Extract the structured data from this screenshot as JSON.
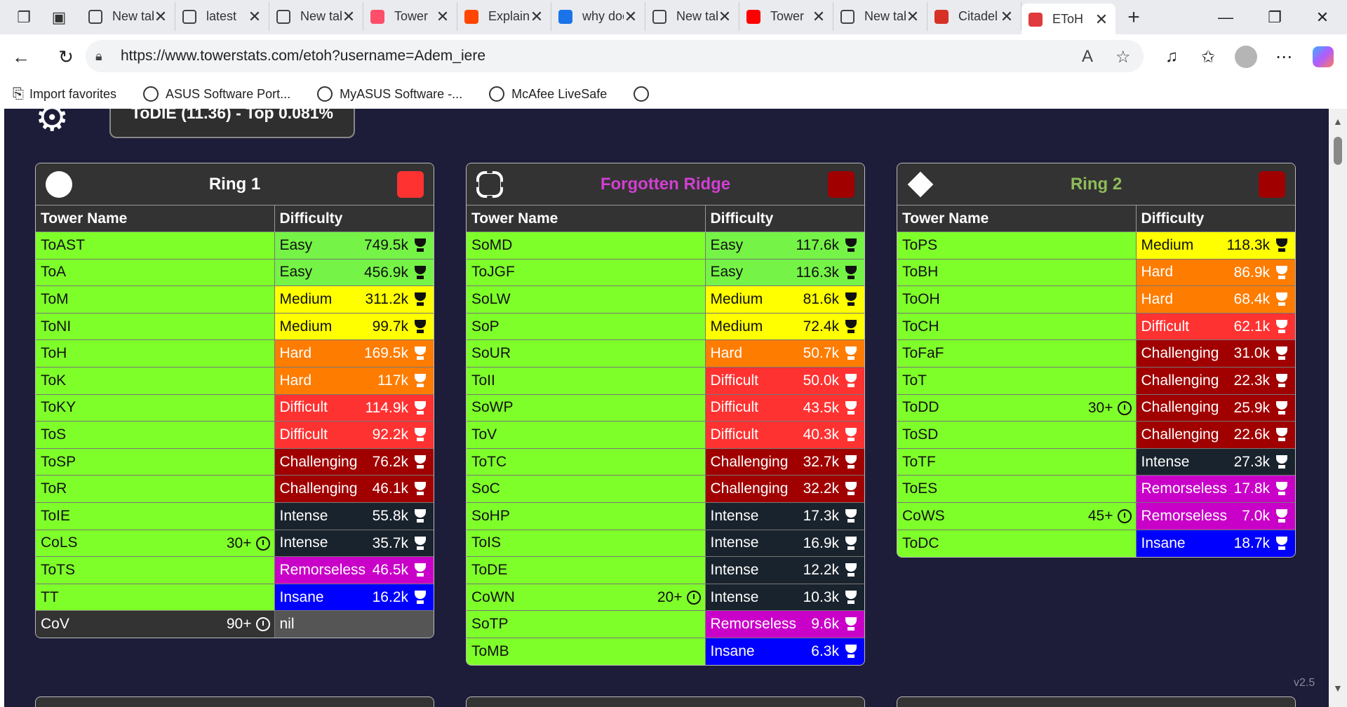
{
  "browser": {
    "tabs": [
      {
        "title": "New tab",
        "icon": "page-icon",
        "color": "#ffffff"
      },
      {
        "title": "latest",
        "icon": "globe-icon",
        "color": "#ffffff"
      },
      {
        "title": "New tab",
        "icon": "page-icon",
        "color": "#ffffff"
      },
      {
        "title": "Tower",
        "icon": "youtube-icon",
        "color": "#ff4e6a"
      },
      {
        "title": "Explain",
        "icon": "reddit-icon",
        "color": "#ff4500"
      },
      {
        "title": "why does",
        "icon": "search-icon",
        "color": "#1a73e8"
      },
      {
        "title": "New tab",
        "icon": "page-icon",
        "color": "#ffffff"
      },
      {
        "title": "Tower",
        "icon": "youtube-icon",
        "color": "#ff0000"
      },
      {
        "title": "New tab",
        "icon": "page-icon",
        "color": "#ffffff"
      },
      {
        "title": "Citadel",
        "icon": "fandom-icon",
        "color": "#d63027"
      },
      {
        "title": "EToH",
        "icon": "towerstats-icon",
        "color": "#e03a3e",
        "active": true
      }
    ],
    "url": "https://www.towerstats.com/etoh?username=Adem_iere",
    "favorites": [
      "Import favorites",
      "ASUS Software Port...",
      "MyASUS Software -...",
      "McAfee LiveSafe"
    ]
  },
  "header": {
    "rank_text": "ToDIE (11.36) - Top 0.081%"
  },
  "columns": {
    "tower": "Tower Name",
    "difficulty": "Difficulty"
  },
  "difficulty_colors": {
    "Easy": {
      "bg": "#75f347",
      "fg": "#111111"
    },
    "Medium": {
      "bg": "#ffff00",
      "fg": "#111111"
    },
    "Hard": {
      "bg": "#fe7c00",
      "fg": "#ffffff"
    },
    "Difficult": {
      "bg": "#ff3232",
      "fg": "#ffffff"
    },
    "Challenging": {
      "bg": "#a00000",
      "fg": "#ffffff"
    },
    "Intense": {
      "bg": "#19232d",
      "fg": "#ffffff"
    },
    "Remorseless": {
      "bg": "#c900c8",
      "fg": "#ffffff"
    },
    "Insane": {
      "bg": "#0000ff",
      "fg": "#ffffff"
    },
    "nil": {
      "bg": "#555555",
      "fg": "#ffffff"
    }
  },
  "areas": [
    {
      "name": "Ring 1",
      "name_color": "#ffffff",
      "icon": "circle-icon",
      "square_color": "#ff3232",
      "towers": [
        {
          "name": "ToAST",
          "difficulty": "Easy",
          "count": "749.5k",
          "trophy": "dark"
        },
        {
          "name": "ToA",
          "difficulty": "Easy",
          "count": "456.9k",
          "trophy": "dark"
        },
        {
          "name": "ToM",
          "difficulty": "Medium",
          "count": "311.2k",
          "trophy": "dark"
        },
        {
          "name": "ToNI",
          "difficulty": "Medium",
          "count": "99.7k",
          "trophy": "dark"
        },
        {
          "name": "ToH",
          "difficulty": "Hard",
          "count": "169.5k",
          "trophy": "light"
        },
        {
          "name": "ToK",
          "difficulty": "Hard",
          "count": "117k",
          "trophy": "light"
        },
        {
          "name": "ToKY",
          "difficulty": "Difficult",
          "count": "114.9k",
          "trophy": "light"
        },
        {
          "name": "ToS",
          "difficulty": "Difficult",
          "count": "92.2k",
          "trophy": "light"
        },
        {
          "name": "ToSP",
          "difficulty": "Challenging",
          "count": "76.2k",
          "trophy": "light"
        },
        {
          "name": "ToR",
          "difficulty": "Challenging",
          "count": "46.1k",
          "trophy": "light"
        },
        {
          "name": "ToIE",
          "difficulty": "Intense",
          "count": "55.8k",
          "trophy": "light"
        },
        {
          "name": "CoLS",
          "time": "30+",
          "difficulty": "Intense",
          "count": "35.7k",
          "trophy": "light"
        },
        {
          "name": "ToTS",
          "difficulty": "Remorseless",
          "count": "46.5k",
          "trophy": "light"
        },
        {
          "name": "TT",
          "difficulty": "Insane",
          "count": "16.2k",
          "trophy": "light"
        },
        {
          "name": "CoV",
          "time": "90+",
          "difficulty": "nil",
          "count": "",
          "trophy": "none",
          "locked": true
        }
      ]
    },
    {
      "name": "Forgotten Ridge",
      "name_color": "#d23fd2",
      "icon": "frame-icon",
      "square_color": "#a00000",
      "towers": [
        {
          "name": "SoMD",
          "difficulty": "Easy",
          "count": "117.6k",
          "trophy": "dark"
        },
        {
          "name": "ToJGF",
          "difficulty": "Easy",
          "count": "116.3k",
          "trophy": "dark"
        },
        {
          "name": "SoLW",
          "difficulty": "Medium",
          "count": "81.6k",
          "trophy": "dark"
        },
        {
          "name": "SoP",
          "difficulty": "Medium",
          "count": "72.4k",
          "trophy": "dark"
        },
        {
          "name": "SoUR",
          "difficulty": "Hard",
          "count": "50.7k",
          "trophy": "light"
        },
        {
          "name": "ToII",
          "difficulty": "Difficult",
          "count": "50.0k",
          "trophy": "light"
        },
        {
          "name": "SoWP",
          "difficulty": "Difficult",
          "count": "43.5k",
          "trophy": "light"
        },
        {
          "name": "ToV",
          "difficulty": "Difficult",
          "count": "40.3k",
          "trophy": "light"
        },
        {
          "name": "ToTC",
          "difficulty": "Challenging",
          "count": "32.7k",
          "trophy": "light"
        },
        {
          "name": "SoC",
          "difficulty": "Challenging",
          "count": "32.2k",
          "trophy": "light"
        },
        {
          "name": "SoHP",
          "difficulty": "Intense",
          "count": "17.3k",
          "trophy": "light"
        },
        {
          "name": "ToIS",
          "difficulty": "Intense",
          "count": "16.9k",
          "trophy": "light"
        },
        {
          "name": "ToDE",
          "difficulty": "Intense",
          "count": "12.2k",
          "trophy": "light"
        },
        {
          "name": "CoWN",
          "time": "20+",
          "difficulty": "Intense",
          "count": "10.3k",
          "trophy": "light"
        },
        {
          "name": "SoTP",
          "difficulty": "Remorseless",
          "count": "9.6k",
          "trophy": "light"
        },
        {
          "name": "ToMB",
          "difficulty": "Insane",
          "count": "6.3k",
          "trophy": "light"
        }
      ]
    },
    {
      "name": "Ring 2",
      "name_color": "#8fbc5a",
      "icon": "diamond-icon",
      "square_color": "#a00000",
      "towers": [
        {
          "name": "ToPS",
          "difficulty": "Medium",
          "count": "118.3k",
          "trophy": "dark"
        },
        {
          "name": "ToBH",
          "difficulty": "Hard",
          "count": "86.9k",
          "trophy": "light"
        },
        {
          "name": "ToOH",
          "difficulty": "Hard",
          "count": "68.4k",
          "trophy": "light"
        },
        {
          "name": "ToCH",
          "difficulty": "Difficult",
          "count": "62.1k",
          "trophy": "light"
        },
        {
          "name": "ToFaF",
          "difficulty": "Challenging",
          "count": "31.0k",
          "trophy": "light"
        },
        {
          "name": "ToT",
          "difficulty": "Challenging",
          "count": "22.3k",
          "trophy": "light"
        },
        {
          "name": "ToDD",
          "time": "30+",
          "difficulty": "Challenging",
          "count": "25.9k",
          "trophy": "light"
        },
        {
          "name": "ToSD",
          "difficulty": "Challenging",
          "count": "22.6k",
          "trophy": "light"
        },
        {
          "name": "ToTF",
          "difficulty": "Intense",
          "count": "27.3k",
          "trophy": "light"
        },
        {
          "name": "ToES",
          "difficulty": "Remorseless",
          "count": "17.8k",
          "trophy": "light"
        },
        {
          "name": "CoWS",
          "time": "45+",
          "difficulty": "Remorseless",
          "count": "7.0k",
          "trophy": "light"
        },
        {
          "name": "ToDC",
          "difficulty": "Insane",
          "count": "18.7k",
          "trophy": "light"
        }
      ]
    }
  ],
  "footer": {
    "version": "v2.5"
  }
}
